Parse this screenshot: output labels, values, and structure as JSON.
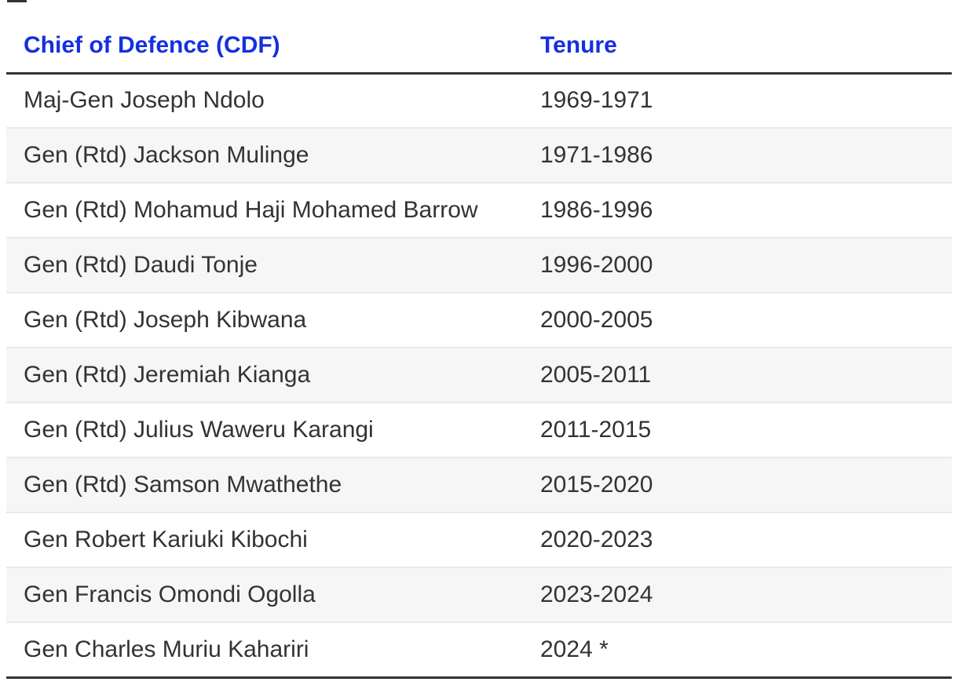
{
  "page": {
    "background": "#ffffff",
    "accent_blue": "#1430e0",
    "text_color": "#333333",
    "stripe_color": "#f6f6f6",
    "rule_color": "#333333"
  },
  "table": {
    "columns": [
      {
        "label": "Chief of Defence (CDF)"
      },
      {
        "label": "Tenure"
      }
    ],
    "rows": [
      {
        "name": "Maj-Gen Joseph Ndolo",
        "tenure": "1969-1971"
      },
      {
        "name": "Gen (Rtd) Jackson Mulinge",
        "tenure": "1971-1986"
      },
      {
        "name": "Gen (Rtd) Mohamud Haji Mohamed Barrow",
        "tenure": "1986-1996"
      },
      {
        "name": "Gen (Rtd) Daudi Tonje",
        "tenure": "1996-2000"
      },
      {
        "name": "Gen (Rtd) Joseph Kibwana",
        "tenure": "2000-2005"
      },
      {
        "name": "Gen (Rtd) Jeremiah Kianga",
        "tenure": "2005-2011"
      },
      {
        "name": "Gen (Rtd) Julius Waweru Karangi",
        "tenure": "2011-2015"
      },
      {
        "name": "Gen (Rtd) Samson Mwathethe",
        "tenure": "2015-2020"
      },
      {
        "name": "Gen Robert Kariuki Kibochi",
        "tenure": "2020-2023"
      },
      {
        "name": "Gen Francis Omondi Ogolla",
        "tenure": "2023-2024"
      },
      {
        "name": "Gen Charles Muriu Kahariri",
        "tenure": "2024 *"
      }
    ]
  }
}
